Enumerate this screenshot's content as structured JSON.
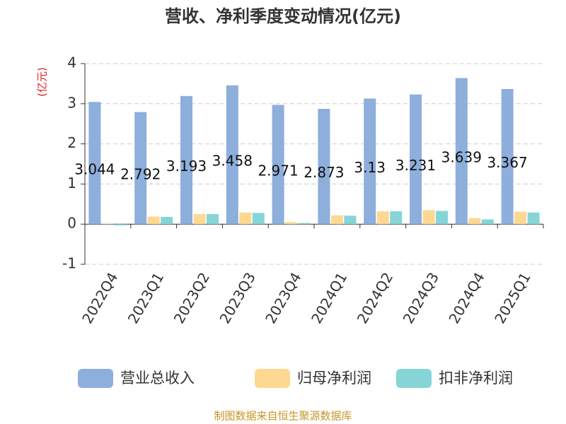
{
  "chart_data": {
    "type": "bar",
    "title": "营收、净利季度变动情况(亿元)",
    "y_label": "(亿元)",
    "categories": [
      "2022Q4",
      "2023Q1",
      "2023Q2",
      "2023Q3",
      "2023Q4",
      "2024Q1",
      "2024Q2",
      "2024Q3",
      "2024Q4",
      "2025Q1"
    ],
    "series": [
      {
        "name": "营业总收入",
        "color": "#8eaedc",
        "data_labels": true,
        "values": [
          3.044,
          2.792,
          3.193,
          3.458,
          2.971,
          2.873,
          3.13,
          3.231,
          3.639,
          3.367
        ]
      },
      {
        "name": "归母净利润",
        "color": "#fdd892",
        "values": [
          0.01,
          0.19,
          0.25,
          0.29,
          0.05,
          0.22,
          0.32,
          0.35,
          0.15,
          0.31
        ]
      },
      {
        "name": "扣非净利润",
        "color": "#86d4d6",
        "values": [
          -0.03,
          0.18,
          0.25,
          0.28,
          0.03,
          0.21,
          0.32,
          0.33,
          0.12,
          0.29
        ]
      }
    ],
    "ylim": [
      -1,
      4
    ],
    "yticks": [
      -1,
      0,
      1,
      2,
      3,
      4
    ],
    "grid": true,
    "source": "制图数据来自恒生聚源数据库"
  }
}
